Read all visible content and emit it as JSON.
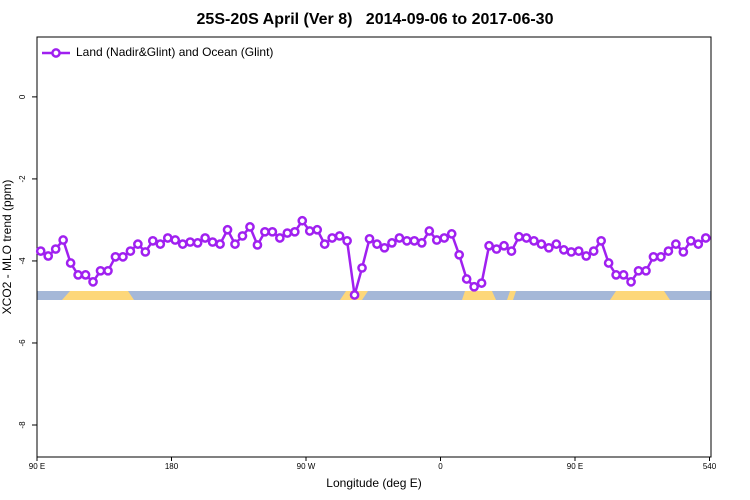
{
  "chart_data": {
    "type": "line",
    "title": "25S-20S April (Ver 8)   2014-09-06 to 2017-06-30",
    "xlabel": "Longitude (deg E)",
    "ylabel": "XCO2 - MLO trend (ppm)",
    "x": [
      92.5,
      97.5,
      102.5,
      107.5,
      112.5,
      117.5,
      122.5,
      127.5,
      132.5,
      137.5,
      142.5,
      147.5,
      152.5,
      157.5,
      162.5,
      167.5,
      172.5,
      177.5,
      182.5,
      187.5,
      192.5,
      197.5,
      202.5,
      207.5,
      212.5,
      217.5,
      222.5,
      227.5,
      232.5,
      237.5,
      242.5,
      247.5,
      252.5,
      257.5,
      262.5,
      267.5,
      272.5,
      277.5,
      282.5,
      287.5,
      292.5,
      297.5,
      302.5,
      307.5,
      312.5,
      317.5,
      322.5,
      327.5,
      332.5,
      337.5,
      342.5,
      347.5,
      352.5,
      357.5,
      362.5,
      367.5,
      372.5,
      377.5,
      382.5,
      387.5,
      392.5,
      397.5,
      402.5,
      407.5,
      412.5,
      417.5,
      422.5,
      427.5,
      432.5,
      437.5,
      442.5,
      447.5,
      452.5,
      457.5,
      462.5,
      467.5,
      472.5,
      477.5,
      482.5,
      487.5,
      492.5,
      497.5,
      502.5,
      507.5,
      512.5,
      517.5,
      522.5,
      527.5,
      532.5,
      537.5
    ],
    "series": [
      {
        "name": "Land (Nadir&Glint) and Ocean (Glint)",
        "color": "#a020f0",
        "values": [
          -3.76,
          -3.88,
          -3.71,
          -3.49,
          -4.05,
          -4.34,
          -4.34,
          -4.51,
          -4.24,
          -4.24,
          -3.9,
          -3.9,
          -3.76,
          -3.59,
          -3.78,
          -3.51,
          -3.59,
          -3.44,
          -3.49,
          -3.59,
          -3.54,
          -3.56,
          -3.44,
          -3.54,
          -3.59,
          -3.24,
          -3.59,
          -3.39,
          -3.17,
          -3.61,
          -3.29,
          -3.29,
          -3.44,
          -3.32,
          -3.29,
          -3.02,
          -3.27,
          -3.24,
          -3.59,
          -3.44,
          -3.39,
          -3.51,
          -4.83,
          -4.17,
          -3.46,
          -3.59,
          -3.68,
          -3.56,
          -3.44,
          -3.51,
          -3.51,
          -3.56,
          -3.27,
          -3.49,
          -3.44,
          -3.34,
          -3.85,
          -4.44,
          -4.63,
          -4.54,
          -3.63,
          -3.71,
          -3.63,
          -3.76,
          -3.41,
          -3.44,
          -3.51,
          -3.59,
          -3.68,
          -3.59,
          -3.73,
          -3.78,
          -3.76,
          -3.88,
          -3.76,
          -3.51,
          -4.05,
          -4.34,
          -4.34,
          -4.51,
          -4.24,
          -4.24,
          -3.9,
          -3.9,
          -3.76,
          -3.59,
          -3.78,
          -3.51,
          -3.59,
          -3.44
        ]
      }
    ],
    "xlim": [
      90,
      541
    ],
    "xticks": [
      {
        "value": 90,
        "label": "90 E"
      },
      180,
      {
        "value": 270,
        "label": "90 W"
      },
      {
        "value": 360,
        "label": "0"
      },
      {
        "value": 450,
        "label": "90 E"
      },
      540
    ],
    "ylim": [
      -8.78,
      1.46
    ],
    "yticks": [
      -8,
      -6,
      -4,
      -2,
      0
    ],
    "legend": "top-left"
  }
}
